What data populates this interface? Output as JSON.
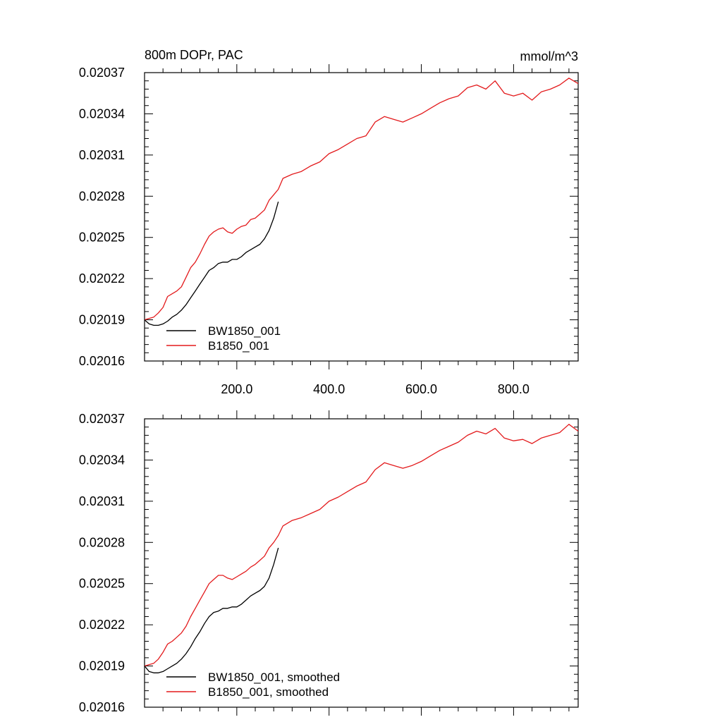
{
  "chart_data": [
    {
      "type": "line",
      "title": "800m DOPr, PAC",
      "units": "mmol/m^3",
      "xlim": [
        0,
        940
      ],
      "ylim": [
        0.02016,
        0.02037
      ],
      "xticks": [
        200,
        400,
        600,
        800
      ],
      "xtick_labels": [
        "200.0",
        "400.0",
        "600.0",
        "800.0"
      ],
      "yticks": [
        0.02016,
        0.02019,
        0.02022,
        0.02025,
        0.02028,
        0.02031,
        0.02034,
        0.02037
      ],
      "ytick_labels": [
        "0.02016",
        "0.02019",
        "0.02022",
        "0.02025",
        "0.02028",
        "0.02031",
        "0.02034",
        "0.02037"
      ],
      "grid": false,
      "legend_position": "bottom-left",
      "series": [
        {
          "name": "BW1850_001",
          "color": "#000000",
          "x": [
            0,
            10,
            20,
            30,
            40,
            50,
            60,
            70,
            80,
            90,
            100,
            110,
            120,
            130,
            140,
            150,
            160,
            170,
            180,
            190,
            200,
            210,
            220,
            230,
            240,
            250,
            260,
            270,
            280,
            290
          ],
          "y": [
            0.02019,
            0.020187,
            0.020186,
            0.020186,
            0.020187,
            0.020189,
            0.020192,
            0.020194,
            0.020197,
            0.020201,
            0.020206,
            0.020211,
            0.020216,
            0.020221,
            0.020226,
            0.020228,
            0.020231,
            0.020232,
            0.020232,
            0.020234,
            0.020234,
            0.020236,
            0.020239,
            0.020241,
            0.020243,
            0.020245,
            0.020249,
            0.020255,
            0.020264,
            0.020276
          ]
        },
        {
          "name": "B1850_001",
          "color": "#e31a1c",
          "x": [
            0,
            10,
            20,
            30,
            40,
            50,
            60,
            70,
            80,
            90,
            100,
            110,
            120,
            130,
            140,
            150,
            160,
            170,
            180,
            190,
            200,
            210,
            220,
            230,
            240,
            250,
            260,
            270,
            280,
            290,
            300,
            320,
            340,
            360,
            380,
            400,
            420,
            440,
            460,
            480,
            500,
            520,
            540,
            560,
            580,
            600,
            620,
            640,
            660,
            680,
            700,
            720,
            740,
            760,
            780,
            800,
            820,
            840,
            860,
            880,
            900,
            920,
            940
          ],
          "y": [
            0.02019,
            0.020191,
            0.020192,
            0.020195,
            0.020199,
            0.020207,
            0.020209,
            0.020211,
            0.020214,
            0.020221,
            0.020228,
            0.020232,
            0.020238,
            0.020245,
            0.020251,
            0.020254,
            0.020256,
            0.020257,
            0.020254,
            0.020253,
            0.020256,
            0.020258,
            0.020259,
            0.020263,
            0.020264,
            0.020267,
            0.02027,
            0.020277,
            0.020281,
            0.020285,
            0.020293,
            0.020296,
            0.020298,
            0.020302,
            0.020305,
            0.020311,
            0.020314,
            0.020318,
            0.020322,
            0.020324,
            0.020334,
            0.020338,
            0.020336,
            0.020334,
            0.020337,
            0.02034,
            0.020344,
            0.020348,
            0.020351,
            0.020353,
            0.020359,
            0.020361,
            0.020358,
            0.020364,
            0.020355,
            0.020353,
            0.020355,
            0.02035,
            0.020356,
            0.020358,
            0.020361,
            0.020366,
            0.020362
          ]
        }
      ]
    },
    {
      "type": "line",
      "title": "",
      "units": "",
      "xlim": [
        0,
        940
      ],
      "ylim": [
        0.02016,
        0.02037
      ],
      "xticks": [
        200,
        400,
        600,
        800
      ],
      "yticks": [
        0.02016,
        0.02019,
        0.02022,
        0.02025,
        0.02028,
        0.02031,
        0.02034,
        0.02037
      ],
      "ytick_labels": [
        "0.02016",
        "0.02019",
        "0.02022",
        "0.02025",
        "0.02028",
        "0.02031",
        "0.02034",
        "0.02037"
      ],
      "grid": false,
      "legend_position": "bottom-left",
      "series": [
        {
          "name": "BW1850_001, smoothed",
          "color": "#000000",
          "x": [
            0,
            10,
            20,
            30,
            40,
            50,
            60,
            70,
            80,
            90,
            100,
            110,
            120,
            130,
            140,
            150,
            160,
            170,
            180,
            190,
            200,
            210,
            220,
            230,
            240,
            250,
            260,
            270,
            280,
            290
          ],
          "y": [
            0.02019,
            0.020186,
            0.020185,
            0.020185,
            0.020186,
            0.020188,
            0.02019,
            0.020192,
            0.020195,
            0.020199,
            0.020204,
            0.02021,
            0.020215,
            0.020221,
            0.020226,
            0.020229,
            0.02023,
            0.020232,
            0.020232,
            0.020233,
            0.020233,
            0.020235,
            0.020238,
            0.020241,
            0.020243,
            0.020245,
            0.020248,
            0.020254,
            0.020264,
            0.020276
          ]
        },
        {
          "name": "B1850_001, smoothed",
          "color": "#e31a1c",
          "x": [
            0,
            10,
            20,
            30,
            40,
            50,
            60,
            70,
            80,
            90,
            100,
            110,
            120,
            130,
            140,
            150,
            160,
            170,
            180,
            190,
            200,
            210,
            220,
            230,
            240,
            250,
            260,
            270,
            280,
            290,
            300,
            320,
            340,
            360,
            380,
            400,
            420,
            440,
            460,
            480,
            500,
            520,
            540,
            560,
            580,
            600,
            620,
            640,
            660,
            680,
            700,
            720,
            740,
            760,
            780,
            800,
            820,
            840,
            860,
            880,
            900,
            920,
            940
          ],
          "y": [
            0.02019,
            0.020191,
            0.020192,
            0.020195,
            0.0202,
            0.020206,
            0.020208,
            0.020211,
            0.020214,
            0.020219,
            0.020226,
            0.020232,
            0.020238,
            0.020244,
            0.02025,
            0.020253,
            0.020256,
            0.020256,
            0.020254,
            0.020253,
            0.020255,
            0.020257,
            0.020259,
            0.020262,
            0.020264,
            0.020267,
            0.02027,
            0.020276,
            0.02028,
            0.020285,
            0.020292,
            0.020296,
            0.020298,
            0.020301,
            0.020304,
            0.02031,
            0.020313,
            0.020317,
            0.020321,
            0.020324,
            0.020333,
            0.020338,
            0.020336,
            0.020334,
            0.020336,
            0.020339,
            0.020343,
            0.020347,
            0.02035,
            0.020353,
            0.020358,
            0.020361,
            0.020359,
            0.020363,
            0.020356,
            0.020354,
            0.020355,
            0.020352,
            0.020356,
            0.020358,
            0.02036,
            0.020366,
            0.020361
          ]
        }
      ]
    }
  ]
}
